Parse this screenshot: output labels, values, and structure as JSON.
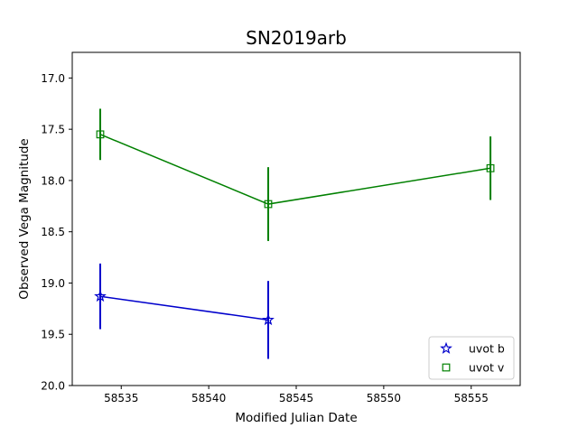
{
  "chart_data": {
    "type": "scatter",
    "title": "SN2019arb",
    "xlabel": "Modified Julian Date",
    "ylabel": "Observed Vega Magnitude",
    "xlim": [
      58532.2,
      58557.8
    ],
    "ylim": [
      20.0,
      16.75
    ],
    "y_inverted": true,
    "grid": false,
    "legend_position": "bottom-right",
    "x_ticks": [
      58535,
      58540,
      58545,
      58550,
      58555
    ],
    "x_tick_labels": [
      "58535",
      "58540",
      "58545",
      "58550",
      "58555"
    ],
    "y_ticks": [
      17.0,
      17.5,
      18.0,
      18.5,
      19.0,
      19.5,
      20.0
    ],
    "y_tick_labels": [
      "17.0",
      "17.5",
      "18.0",
      "18.5",
      "19.0",
      "19.5",
      "20.0"
    ],
    "series": [
      {
        "name": "uvot b",
        "color": "#0000cc",
        "marker": "star",
        "x": [
          58533.8,
          58543.4
        ],
        "y": [
          19.13,
          19.36
        ],
        "yerr": [
          0.32,
          0.38
        ]
      },
      {
        "name": "uvot v",
        "color": "#008000",
        "marker": "square",
        "x": [
          58533.8,
          58543.4,
          58556.1
        ],
        "y": [
          17.55,
          18.23,
          17.88
        ],
        "yerr": [
          0.25,
          0.36,
          0.31
        ]
      }
    ]
  }
}
